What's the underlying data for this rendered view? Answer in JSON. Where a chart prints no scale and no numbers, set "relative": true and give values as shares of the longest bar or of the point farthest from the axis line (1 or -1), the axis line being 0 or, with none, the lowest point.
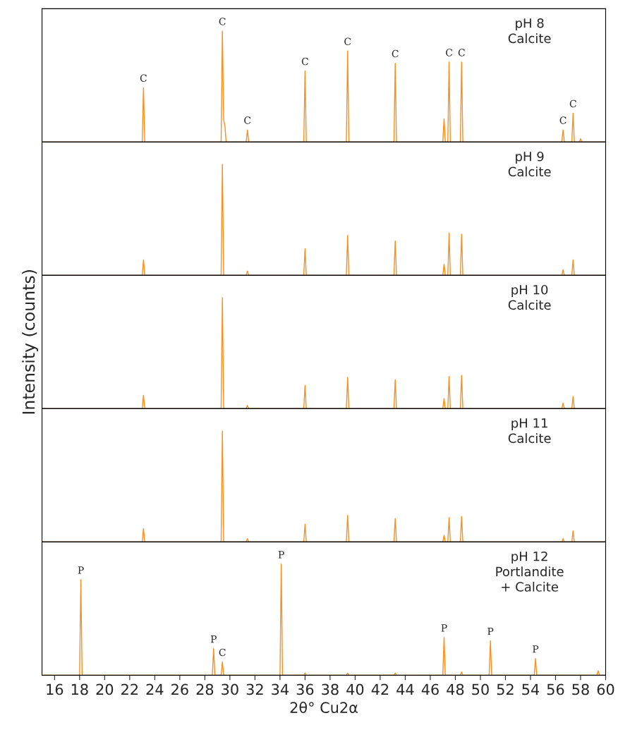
{
  "chart_data": [
    {
      "type": "line",
      "relative": true,
      "xlim": [
        15,
        60
      ],
      "tick_labels": false,
      "grid": false,
      "marker": "none",
      "line_style": "solid",
      "series": [
        {
          "color": "#f7901e",
          "x": [
            15,
            23.0,
            23.1,
            23.2,
            29.3,
            29.4,
            29.5,
            29.6,
            29.7,
            31.3,
            31.4,
            31.5,
            35.9,
            36.0,
            36.1,
            39.3,
            39.4,
            39.5,
            43.1,
            43.2,
            43.3,
            47.0,
            47.1,
            47.2,
            47.4,
            47.5,
            47.6,
            48.4,
            48.5,
            48.6,
            56.5,
            56.6,
            56.7,
            57.3,
            57.4,
            57.5,
            57.9,
            58.0,
            58.1,
            60
          ],
          "values": [
            0,
            0,
            0.49,
            0,
            0,
            1,
            0.2,
            0.15,
            0,
            0,
            0.11,
            0,
            0,
            0.64,
            0,
            0,
            0.82,
            0,
            0,
            0.71,
            0,
            0,
            0.21,
            0,
            0,
            0.72,
            0,
            0,
            0.72,
            0,
            0,
            0.11,
            0,
            0,
            0.26,
            0,
            0,
            0.03,
            0,
            0
          ]
        }
      ],
      "annotations": [
        "pH 8\nCalcite",
        {
          "text": "C",
          "x": 23.1,
          "y": 0.49
        },
        {
          "text": "C",
          "x": 29.4,
          "y": 1
        },
        {
          "text": "C",
          "x": 31.4,
          "y": 0.11
        },
        {
          "text": "C",
          "x": 36.0,
          "y": 0.64
        },
        {
          "text": "C",
          "x": 39.4,
          "y": 0.82
        },
        {
          "text": "C",
          "x": 43.2,
          "y": 0.71
        },
        {
          "text": "C",
          "x": 47.5,
          "y": 0.72
        },
        {
          "text": "C",
          "x": 48.5,
          "y": 0.72
        },
        {
          "text": "C",
          "x": 56.6,
          "y": 0.11
        },
        {
          "text": "C",
          "x": 57.4,
          "y": 0.26
        }
      ]
    },
    {
      "type": "line",
      "relative": true,
      "xlim": [
        15,
        60
      ],
      "tick_labels": false,
      "grid": false,
      "marker": "none",
      "line_style": "solid",
      "series": [
        {
          "color": "#f7901e",
          "x": [
            15,
            23.0,
            23.1,
            23.2,
            29.3,
            29.4,
            29.5,
            31.3,
            31.4,
            31.5,
            35.9,
            36.0,
            36.1,
            39.3,
            39.4,
            39.5,
            43.1,
            43.2,
            43.3,
            47.0,
            47.1,
            47.2,
            47.4,
            47.5,
            47.6,
            48.4,
            48.5,
            48.6,
            56.5,
            56.6,
            56.7,
            57.3,
            57.4,
            57.5,
            60
          ],
          "values": [
            0,
            0,
            0.14,
            0,
            0,
            1,
            0,
            0,
            0.04,
            0,
            0,
            0.24,
            0,
            0,
            0.36,
            0,
            0,
            0.31,
            0,
            0,
            0.1,
            0,
            0,
            0.38,
            0,
            0,
            0.37,
            0,
            0,
            0.05,
            0,
            0,
            0.14,
            0,
            0
          ]
        }
      ],
      "annotations": [
        "pH 9\nCalcite"
      ]
    },
    {
      "type": "line",
      "relative": true,
      "xlim": [
        15,
        60
      ],
      "tick_labels": false,
      "grid": false,
      "marker": "none",
      "line_style": "solid",
      "ylabel": "Intensity (counts)",
      "series": [
        {
          "color": "#f7901e",
          "x": [
            15,
            23.0,
            23.1,
            23.2,
            29.3,
            29.4,
            29.5,
            31.3,
            31.4,
            31.5,
            35.9,
            36.0,
            36.1,
            39.3,
            39.4,
            39.5,
            43.1,
            43.2,
            43.3,
            47.0,
            47.1,
            47.2,
            47.4,
            47.5,
            47.6,
            48.4,
            48.5,
            48.6,
            56.5,
            56.6,
            56.7,
            57.3,
            57.4,
            57.5,
            60
          ],
          "values": [
            0,
            0,
            0.12,
            0,
            0,
            1,
            0,
            0,
            0.03,
            0,
            0,
            0.21,
            0,
            0,
            0.28,
            0,
            0,
            0.26,
            0,
            0,
            0.09,
            0,
            0,
            0.29,
            0,
            0,
            0.3,
            0,
            0,
            0.05,
            0,
            0,
            0.11,
            0,
            0
          ]
        }
      ],
      "annotations": [
        "pH 10\nCalcite"
      ]
    },
    {
      "type": "line",
      "relative": true,
      "xlim": [
        15,
        60
      ],
      "tick_labels": false,
      "grid": false,
      "marker": "none",
      "line_style": "solid",
      "series": [
        {
          "color": "#f7901e",
          "x": [
            15,
            23.0,
            23.1,
            23.2,
            29.3,
            29.4,
            29.5,
            31.3,
            31.4,
            31.5,
            35.9,
            36.0,
            36.1,
            39.3,
            39.4,
            39.5,
            43.1,
            43.2,
            43.3,
            47.0,
            47.1,
            47.2,
            47.4,
            47.5,
            47.6,
            48.4,
            48.5,
            48.6,
            56.5,
            56.6,
            56.7,
            57.3,
            57.4,
            57.5,
            60
          ],
          "values": [
            0,
            0,
            0.12,
            0,
            0,
            1,
            0,
            0,
            0.03,
            0,
            0,
            0.16,
            0,
            0,
            0.24,
            0,
            0,
            0.21,
            0,
            0,
            0.06,
            0,
            0,
            0.22,
            0,
            0,
            0.23,
            0,
            0,
            0.03,
            0,
            0,
            0.1,
            0,
            0
          ]
        }
      ],
      "annotations": [
        "pH 11\nCalcite"
      ]
    },
    {
      "type": "line",
      "relative": true,
      "xlim": [
        15,
        60
      ],
      "xticks": [
        16,
        18,
        20,
        22,
        24,
        26,
        28,
        30,
        32,
        34,
        36,
        38,
        40,
        42,
        44,
        46,
        48,
        50,
        52,
        54,
        56,
        58,
        60
      ],
      "tick_labels": "x",
      "grid": false,
      "marker": "none",
      "line_style": "solid",
      "xlabel": "2θ° Cu2α",
      "series": [
        {
          "color": "#f7901e",
          "x": [
            15,
            18.0,
            18.1,
            18.2,
            28.6,
            28.7,
            28.8,
            29.3,
            29.4,
            29.5,
            34.0,
            34.1,
            34.2,
            35.9,
            36.0,
            36.1,
            39.3,
            39.4,
            39.5,
            43.1,
            43.2,
            43.3,
            47.0,
            47.1,
            47.2,
            48.4,
            48.5,
            48.6,
            50.7,
            50.8,
            50.9,
            54.3,
            54.4,
            54.5,
            59.3,
            59.4,
            59.5,
            60
          ],
          "values": [
            0,
            0,
            0.86,
            0,
            0,
            0.24,
            0,
            0,
            0.12,
            0,
            0,
            1,
            0,
            0,
            0.02,
            0,
            0,
            0.02,
            0,
            0,
            0.02,
            0,
            0,
            0.34,
            0,
            0,
            0.03,
            0,
            0,
            0.31,
            0,
            0,
            0.15,
            0,
            0,
            0.04,
            0,
            0
          ]
        }
      ],
      "annotations": [
        "pH 12\nPortlandite\n+ Calcite",
        {
          "text": "P",
          "x": 18.1,
          "y": 0.86
        },
        {
          "text": "P",
          "x": 28.7,
          "y": 0.24
        },
        {
          "text": "C",
          "x": 29.4,
          "y": 0.12
        },
        {
          "text": "P",
          "x": 34.1,
          "y": 1
        },
        {
          "text": "P",
          "x": 47.1,
          "y": 0.34
        },
        {
          "text": "P",
          "x": 50.8,
          "y": 0.31
        },
        {
          "text": "P",
          "x": 54.4,
          "y": 0.15
        }
      ]
    }
  ]
}
